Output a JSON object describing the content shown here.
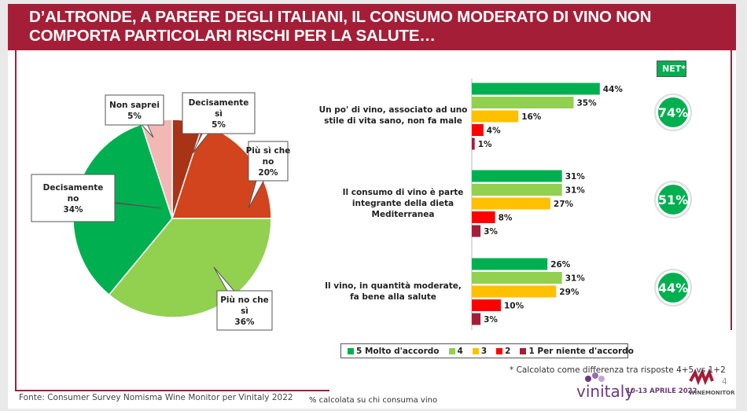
{
  "title": "D’ALTRONDE, A PARERE DEGLI ITALIANI, IL CONSUMO MODERATO DI VINO NON COMPORTA PARTICOLARI RISCHI PER LA SALUTE…",
  "chart_data": [
    {
      "type": "pie",
      "slices": [
        {
          "label": "Decisamente sì",
          "value": 5,
          "color": "#a93317"
        },
        {
          "label": "Più sì che no",
          "value": 20,
          "color": "#d1441e"
        },
        {
          "label": "Più no che sì",
          "value": 36,
          "color": "#92d050"
        },
        {
          "label": "Decisamente no",
          "value": 34,
          "color": "#00b050"
        },
        {
          "label": "Non saprei",
          "value": 5,
          "color": "#f2b8b4"
        }
      ]
    },
    {
      "type": "bar",
      "orientation": "horizontal",
      "categories": [
        "Un po' di vino, associato ad uno stile di vita sano, non fa male",
        "Il consumo di vino è parte integrante della dieta Mediterranea",
        "Il vino, in quantità moderate, fa bene alla salute"
      ],
      "series": [
        {
          "name": "5 Molto d'accordo",
          "color": "#00b050",
          "values": [
            44,
            31,
            26
          ]
        },
        {
          "name": "4",
          "color": "#92d050",
          "values": [
            35,
            31,
            31
          ]
        },
        {
          "name": "3",
          "color": "#ffc000",
          "values": [
            16,
            27,
            29
          ]
        },
        {
          "name": "2",
          "color": "#ff0000",
          "values": [
            4,
            8,
            10
          ]
        },
        {
          "name": "1 Per niente d'accordo",
          "color": "#a51e37",
          "values": [
            1,
            3,
            3
          ]
        }
      ],
      "net_label": "NET*",
      "net": [
        "74%",
        "51%",
        "44%"
      ]
    }
  ],
  "footnote": "* Calcolato come differenza tra risposte 4+5 vs 1+2",
  "source": "Fonte: Consumer Survey Nomisma Wine Monitor per Vinitaly 2022",
  "base_note": "% calcolata su chi consuma vino",
  "page_number": "4",
  "logos": {
    "vinitaly": "vinitaly",
    "dates": "10-13 APRILE 2022",
    "winemonitor": "WINEMONITOR",
    "nomisma": "Nomisma"
  }
}
